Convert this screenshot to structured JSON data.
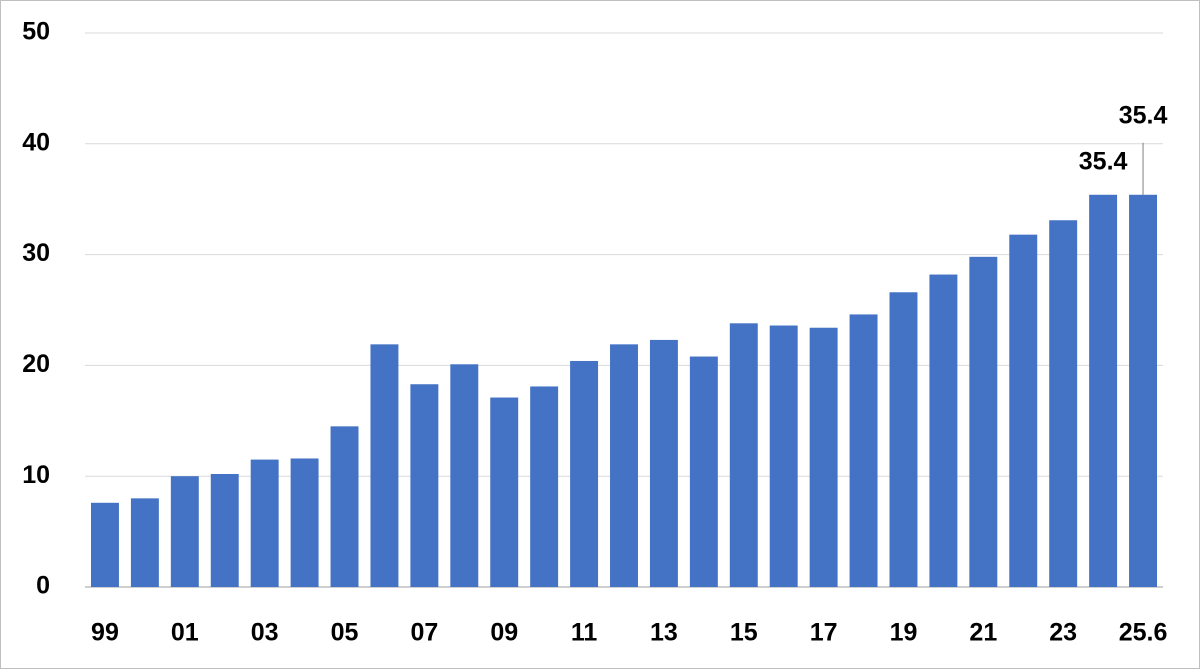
{
  "chart_data": {
    "type": "bar",
    "categories": [
      "99",
      null,
      "01",
      null,
      "03",
      null,
      "05",
      null,
      "07",
      null,
      "09",
      null,
      "11",
      null,
      "13",
      null,
      "15",
      null,
      "17",
      null,
      "19",
      null,
      "21",
      null,
      "23",
      null,
      "25.6"
    ],
    "values": [
      7.6,
      8.0,
      10.0,
      10.2,
      11.5,
      11.6,
      14.5,
      21.9,
      18.3,
      20.1,
      17.1,
      18.1,
      20.4,
      21.9,
      22.3,
      20.8,
      23.8,
      23.6,
      23.4,
      24.6,
      26.6,
      28.2,
      29.8,
      31.8,
      33.1,
      35.4,
      35.4
    ],
    "value_labels": [
      null,
      null,
      null,
      null,
      null,
      null,
      null,
      null,
      null,
      null,
      null,
      null,
      null,
      null,
      null,
      null,
      null,
      null,
      null,
      null,
      null,
      null,
      null,
      null,
      null,
      "35.4",
      "35.4"
    ],
    "color": "#4472c4",
    "ylim": [
      0,
      50
    ],
    "yticks": [
      0,
      10,
      20,
      30,
      40,
      50
    ],
    "grid": true
  }
}
